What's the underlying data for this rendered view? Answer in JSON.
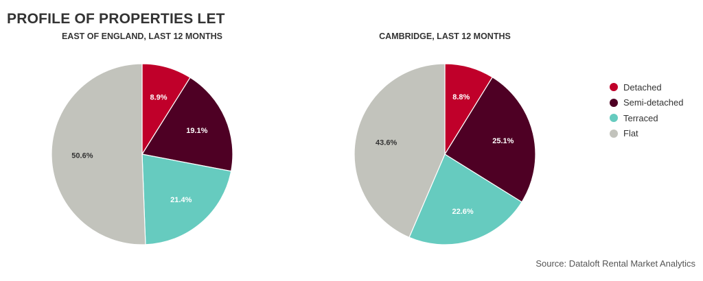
{
  "title": "PROFILE OF PROPERTIES LET",
  "source": "Source: Dataloft Rental Market Analytics",
  "legend": [
    {
      "label": "Detached",
      "color": "#c0002a"
    },
    {
      "label": "Semi-detached",
      "color": "#4e0024"
    },
    {
      "label": "Terraced",
      "color": "#66cbbf"
    },
    {
      "label": "Flat",
      "color": "#c2c3bc"
    }
  ],
  "chart_data": [
    {
      "type": "pie",
      "title": "EAST OF ENGLAND, LAST 12 MONTHS",
      "categories": [
        "Detached",
        "Semi-detached",
        "Terraced",
        "Flat"
      ],
      "values": [
        8.9,
        19.1,
        21.4,
        50.6
      ],
      "labels": [
        "8.9%",
        "19.1%",
        "21.4%",
        "50.6%"
      ],
      "colors": [
        "#c0002a",
        "#4e0024",
        "#66cbbf",
        "#c2c3bc"
      ],
      "label_colors": [
        "#ffffff",
        "#ffffff",
        "#ffffff",
        "#333333"
      ],
      "legend": "right"
    },
    {
      "type": "pie",
      "title": "CAMBRIDGE, LAST 12 MONTHS",
      "categories": [
        "Detached",
        "Semi-detached",
        "Terraced",
        "Flat"
      ],
      "values": [
        8.8,
        25.1,
        22.6,
        43.6
      ],
      "labels": [
        "8.8%",
        "25.1%",
        "22.6%",
        "43.6%"
      ],
      "colors": [
        "#c0002a",
        "#4e0024",
        "#66cbbf",
        "#c2c3bc"
      ],
      "label_colors": [
        "#ffffff",
        "#ffffff",
        "#ffffff",
        "#333333"
      ],
      "legend": "right"
    }
  ]
}
